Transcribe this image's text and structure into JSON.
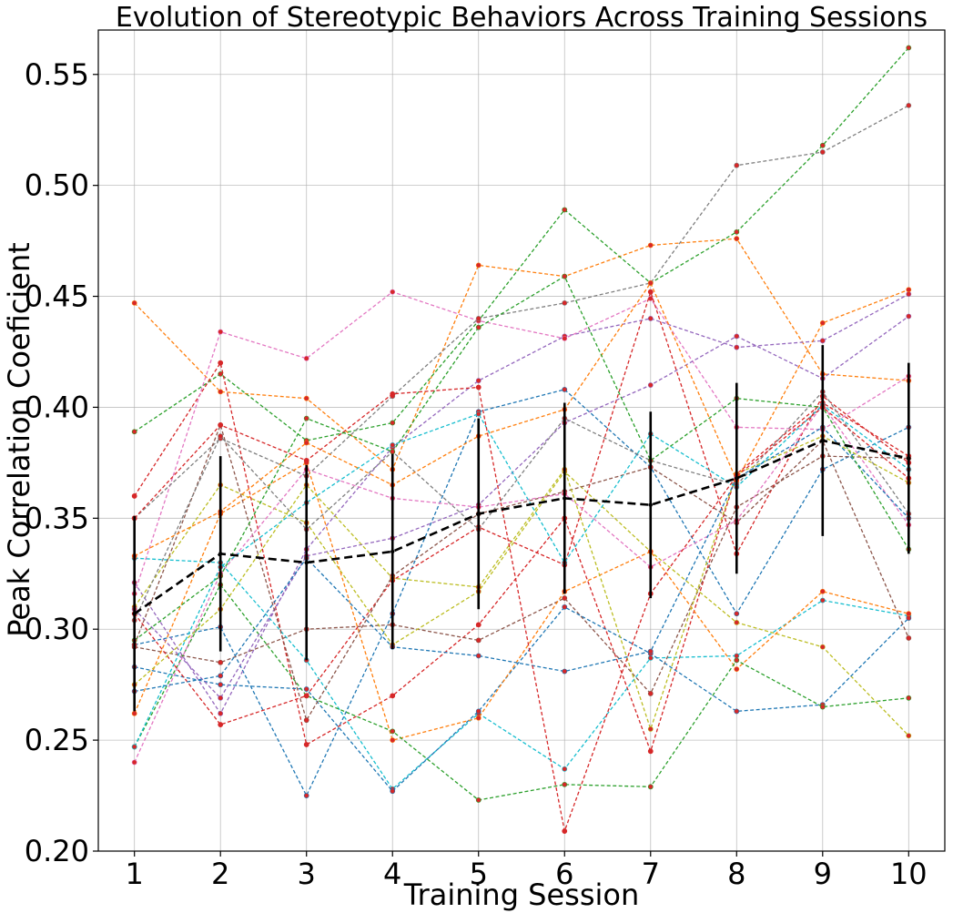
{
  "chart_data": {
    "type": "line",
    "title": "Evolution of Stereotypic Behaviors Across Training Sessions",
    "xlabel": "Training Session",
    "ylabel": "Peak Correlation Coeficient",
    "x": [
      1,
      2,
      3,
      4,
      5,
      6,
      7,
      8,
      9,
      10
    ],
    "xlim": [
      0.58,
      10.42
    ],
    "ylim": [
      0.2,
      0.57
    ],
    "yticks": [
      0.2,
      0.25,
      0.3,
      0.35,
      0.4,
      0.45,
      0.5,
      0.55
    ],
    "ytick_labels": [
      "0.20",
      "0.25",
      "0.30",
      "0.35",
      "0.40",
      "0.45",
      "0.50",
      "0.55"
    ],
    "xtick_labels": [
      "1",
      "2",
      "3",
      "4",
      "5",
      "6",
      "7",
      "8",
      "9",
      "10"
    ],
    "grid": true,
    "legend": "none",
    "marker_color": "#d62728",
    "series": [
      {
        "color": "#1f77b4",
        "values": [
          0.293,
          0.301,
          0.225,
          0.307,
          0.398,
          0.408,
          0.373,
          0.307,
          0.372,
          0.391
        ]
      },
      {
        "color": "#ff7f0e",
        "values": [
          0.447,
          0.407,
          0.404,
          0.372,
          0.464,
          0.459,
          0.473,
          0.476,
          0.415,
          0.412
        ]
      },
      {
        "color": "#2ca02c",
        "values": [
          0.389,
          0.415,
          0.385,
          0.393,
          0.439,
          0.489,
          0.456,
          0.479,
          0.518,
          0.562
        ]
      },
      {
        "color": "#d62728",
        "values": [
          0.36,
          0.42,
          0.248,
          0.27,
          0.302,
          0.35,
          0.245,
          0.37,
          0.402,
          0.378
        ]
      },
      {
        "color": "#9467bd",
        "values": [
          0.321,
          0.262,
          0.336,
          0.382,
          0.412,
          0.432,
          0.44,
          0.427,
          0.43,
          0.451
        ]
      },
      {
        "color": "#8c564b",
        "values": [
          0.292,
          0.285,
          0.3,
          0.302,
          0.295,
          0.314,
          0.271,
          0.355,
          0.378,
          0.377
        ]
      },
      {
        "color": "#e377c2",
        "values": [
          0.316,
          0.434,
          0.422,
          0.452,
          0.439,
          0.431,
          0.449,
          0.391,
          0.39,
          0.414
        ]
      },
      {
        "color": "#7f7f7f",
        "values": [
          0.35,
          0.386,
          0.369,
          0.405,
          0.44,
          0.447,
          0.456,
          0.509,
          0.515,
          0.536
        ]
      },
      {
        "color": "#bcbd22",
        "values": [
          0.31,
          0.365,
          0.348,
          0.293,
          0.317,
          0.371,
          0.335,
          0.303,
          0.292,
          0.252
        ]
      },
      {
        "color": "#17becf",
        "values": [
          0.332,
          0.33,
          0.286,
          0.228,
          0.262,
          0.237,
          0.287,
          0.288,
          0.313,
          0.306
        ]
      },
      {
        "color": "#1f77b4",
        "values": [
          0.283,
          0.275,
          0.273,
          0.227,
          0.263,
          0.31,
          0.289,
          0.263,
          0.266,
          0.305
        ]
      },
      {
        "color": "#ff7f0e",
        "values": [
          0.262,
          0.352,
          0.375,
          0.25,
          0.26,
          0.317,
          0.335,
          0.282,
          0.317,
          0.307
        ]
      },
      {
        "color": "#2ca02c",
        "values": [
          0.247,
          0.32,
          0.27,
          0.254,
          0.223,
          0.23,
          0.229,
          0.286,
          0.265,
          0.269
        ]
      },
      {
        "color": "#d62728",
        "values": [
          0.307,
          0.257,
          0.27,
          0.322,
          0.346,
          0.329,
          0.452,
          0.334,
          0.405,
          0.375
        ]
      },
      {
        "color": "#9467bd",
        "values": [
          0.309,
          0.269,
          0.333,
          0.341,
          0.356,
          0.393,
          0.41,
          0.432,
          0.413,
          0.441
        ]
      },
      {
        "color": "#8c564b",
        "values": [
          0.293,
          0.392,
          0.259,
          0.324,
          0.352,
          0.362,
          0.373,
          0.348,
          0.385,
          0.296
        ]
      },
      {
        "color": "#e377c2",
        "values": [
          0.24,
          0.325,
          0.372,
          0.359,
          0.355,
          0.361,
          0.328,
          0.349,
          0.401,
          0.347
        ]
      },
      {
        "color": "#7f7f7f",
        "values": [
          0.304,
          0.387,
          0.345,
          0.38,
          0.345,
          0.395,
          0.376,
          0.365,
          0.407,
          0.352
        ]
      },
      {
        "color": "#bcbd22",
        "values": [
          0.275,
          0.309,
          0.365,
          0.323,
          0.319,
          0.372,
          0.255,
          0.37,
          0.387,
          0.366
        ]
      },
      {
        "color": "#17becf",
        "values": [
          0.247,
          0.328,
          0.357,
          0.383,
          0.397,
          0.33,
          0.388,
          0.364,
          0.401,
          0.372
        ]
      },
      {
        "color": "#1f77b4",
        "values": [
          0.272,
          0.279,
          0.332,
          0.292,
          0.288,
          0.281,
          0.29,
          0.368,
          0.391,
          0.35
        ]
      },
      {
        "color": "#ff7f0e",
        "values": [
          0.333,
          0.353,
          0.384,
          0.365,
          0.387,
          0.399,
          0.456,
          0.367,
          0.438,
          0.453
        ]
      },
      {
        "color": "#2ca02c",
        "values": [
          0.295,
          0.324,
          0.395,
          0.38,
          0.436,
          0.459,
          0.376,
          0.404,
          0.4,
          0.336
        ]
      },
      {
        "color": "#d62728",
        "values": [
          0.35,
          0.392,
          0.376,
          0.406,
          0.409,
          0.209,
          0.316,
          0.369,
          0.4,
          0.368
        ]
      }
    ],
    "mean": {
      "color": "#000000",
      "values": [
        0.307,
        0.334,
        0.33,
        0.335,
        0.352,
        0.359,
        0.356,
        0.368,
        0.385,
        0.377
      ],
      "errors": [
        0.044,
        0.044,
        0.044,
        0.044,
        0.043,
        0.043,
        0.042,
        0.043,
        0.043,
        0.043
      ]
    }
  }
}
